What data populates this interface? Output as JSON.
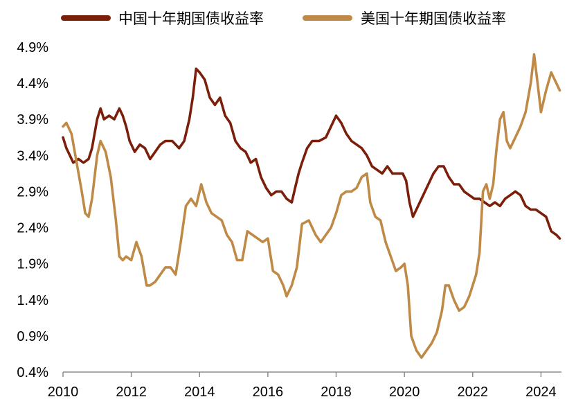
{
  "chart_data": {
    "type": "line",
    "title": "",
    "xlabel": "",
    "ylabel": "",
    "xlim": [
      2010,
      2024.6
    ],
    "ylim": [
      0.4,
      4.9
    ],
    "x_ticks": [
      2010,
      2012,
      2014,
      2016,
      2018,
      2020,
      2022,
      2024
    ],
    "x_tick_labels": [
      "2010",
      "2012",
      "2014",
      "2016",
      "2018",
      "2020",
      "2022",
      "2024"
    ],
    "y_ticks": [
      0.4,
      0.9,
      1.4,
      1.9,
      2.4,
      2.9,
      3.4,
      3.9,
      4.4,
      4.9
    ],
    "y_tick_labels": [
      "0.4%",
      "0.9%",
      "1.4%",
      "1.9%",
      "2.4%",
      "2.9%",
      "3.4%",
      "3.9%",
      "4.4%",
      "4.9%"
    ],
    "grid": false,
    "legend_position": "top",
    "series": [
      {
        "name": "中国十年期国债收益率",
        "color": "#7b1e0a",
        "x": [
          2010.0,
          2010.1,
          2010.2,
          2010.3,
          2010.45,
          2010.6,
          2010.75,
          2010.85,
          2011.0,
          2011.1,
          2011.2,
          2011.35,
          2011.5,
          2011.65,
          2011.75,
          2011.85,
          2011.95,
          2012.1,
          2012.25,
          2012.4,
          2012.55,
          2012.7,
          2012.85,
          2013.0,
          2013.2,
          2013.4,
          2013.55,
          2013.7,
          2013.8,
          2013.9,
          2014.0,
          2014.15,
          2014.3,
          2014.45,
          2014.6,
          2014.75,
          2014.9,
          2015.05,
          2015.2,
          2015.35,
          2015.5,
          2015.65,
          2015.8,
          2015.95,
          2016.1,
          2016.25,
          2016.4,
          2016.55,
          2016.7,
          2016.8,
          2016.9,
          2017.0,
          2017.15,
          2017.3,
          2017.5,
          2017.7,
          2017.85,
          2018.0,
          2018.15,
          2018.3,
          2018.45,
          2018.6,
          2018.75,
          2018.9,
          2019.05,
          2019.2,
          2019.35,
          2019.5,
          2019.65,
          2019.8,
          2019.95,
          2020.05,
          2020.15,
          2020.25,
          2020.4,
          2020.55,
          2020.7,
          2020.85,
          2021.0,
          2021.15,
          2021.3,
          2021.45,
          2021.6,
          2021.75,
          2021.9,
          2022.05,
          2022.2,
          2022.35,
          2022.5,
          2022.65,
          2022.8,
          2022.95,
          2023.1,
          2023.25,
          2023.4,
          2023.55,
          2023.7,
          2023.85,
          2024.0,
          2024.15,
          2024.3,
          2024.45,
          2024.55
        ],
        "values": [
          3.65,
          3.5,
          3.4,
          3.3,
          3.35,
          3.3,
          3.35,
          3.5,
          3.9,
          4.05,
          3.9,
          3.95,
          3.9,
          4.05,
          3.95,
          3.8,
          3.6,
          3.45,
          3.55,
          3.5,
          3.35,
          3.45,
          3.55,
          3.6,
          3.6,
          3.5,
          3.6,
          3.9,
          4.2,
          4.6,
          4.55,
          4.45,
          4.2,
          4.1,
          4.2,
          3.95,
          3.85,
          3.6,
          3.5,
          3.45,
          3.3,
          3.35,
          3.1,
          2.95,
          2.85,
          2.9,
          2.9,
          2.8,
          2.75,
          2.95,
          3.15,
          3.3,
          3.5,
          3.6,
          3.6,
          3.65,
          3.8,
          3.95,
          3.85,
          3.7,
          3.6,
          3.55,
          3.5,
          3.4,
          3.25,
          3.2,
          3.15,
          3.25,
          3.15,
          3.15,
          3.15,
          3.05,
          2.75,
          2.55,
          2.7,
          2.85,
          3.0,
          3.15,
          3.25,
          3.25,
          3.1,
          3.0,
          3.0,
          2.9,
          2.85,
          2.8,
          2.8,
          2.75,
          2.7,
          2.75,
          2.7,
          2.8,
          2.85,
          2.9,
          2.85,
          2.7,
          2.65,
          2.65,
          2.6,
          2.55,
          2.35,
          2.3,
          2.25
        ]
      },
      {
        "name": "美国十年期国债收益率",
        "color": "#bf8a47",
        "x": [
          2010.0,
          2010.1,
          2010.25,
          2010.4,
          2010.55,
          2010.65,
          2010.75,
          2010.85,
          2011.0,
          2011.1,
          2011.25,
          2011.4,
          2011.55,
          2011.65,
          2011.75,
          2011.85,
          2012.0,
          2012.15,
          2012.3,
          2012.45,
          2012.55,
          2012.7,
          2012.85,
          2013.0,
          2013.15,
          2013.3,
          2013.45,
          2013.6,
          2013.75,
          2013.9,
          2014.05,
          2014.2,
          2014.35,
          2014.5,
          2014.65,
          2014.8,
          2014.95,
          2015.1,
          2015.25,
          2015.4,
          2015.55,
          2015.7,
          2015.85,
          2016.0,
          2016.15,
          2016.3,
          2016.45,
          2016.55,
          2016.7,
          2016.85,
          2017.0,
          2017.2,
          2017.4,
          2017.55,
          2017.7,
          2017.85,
          2018.0,
          2018.15,
          2018.3,
          2018.45,
          2018.6,
          2018.75,
          2018.9,
          2019.0,
          2019.15,
          2019.3,
          2019.45,
          2019.6,
          2019.75,
          2019.9,
          2020.0,
          2020.1,
          2020.2,
          2020.35,
          2020.5,
          2020.65,
          2020.8,
          2020.95,
          2021.1,
          2021.2,
          2021.3,
          2021.45,
          2021.6,
          2021.75,
          2021.9,
          2022.0,
          2022.1,
          2022.2,
          2022.3,
          2022.4,
          2022.5,
          2022.6,
          2022.7,
          2022.8,
          2022.9,
          2023.0,
          2023.1,
          2023.25,
          2023.4,
          2023.55,
          2023.7,
          2023.8,
          2023.9,
          2024.0,
          2024.15,
          2024.3,
          2024.45,
          2024.55
        ],
        "values": [
          3.8,
          3.85,
          3.7,
          3.3,
          2.9,
          2.6,
          2.55,
          2.8,
          3.4,
          3.6,
          3.45,
          3.1,
          2.5,
          2.0,
          1.95,
          2.0,
          1.95,
          2.2,
          2.0,
          1.6,
          1.6,
          1.65,
          1.75,
          1.85,
          1.85,
          1.75,
          2.2,
          2.7,
          2.8,
          2.7,
          3.0,
          2.75,
          2.6,
          2.55,
          2.5,
          2.3,
          2.2,
          1.95,
          1.95,
          2.35,
          2.3,
          2.25,
          2.2,
          2.25,
          1.8,
          1.75,
          1.6,
          1.45,
          1.6,
          1.85,
          2.45,
          2.5,
          2.3,
          2.2,
          2.3,
          2.4,
          2.6,
          2.85,
          2.9,
          2.9,
          2.95,
          3.1,
          3.15,
          2.75,
          2.55,
          2.5,
          2.2,
          2.0,
          1.8,
          1.85,
          1.9,
          1.6,
          0.9,
          0.7,
          0.6,
          0.7,
          0.8,
          0.95,
          1.25,
          1.6,
          1.6,
          1.4,
          1.25,
          1.3,
          1.45,
          1.6,
          1.75,
          2.05,
          2.9,
          3.0,
          2.8,
          3.0,
          3.5,
          3.9,
          4.0,
          3.6,
          3.5,
          3.65,
          3.8,
          4.0,
          4.4,
          4.8,
          4.4,
          4.0,
          4.3,
          4.55,
          4.4,
          4.3
        ]
      }
    ]
  }
}
